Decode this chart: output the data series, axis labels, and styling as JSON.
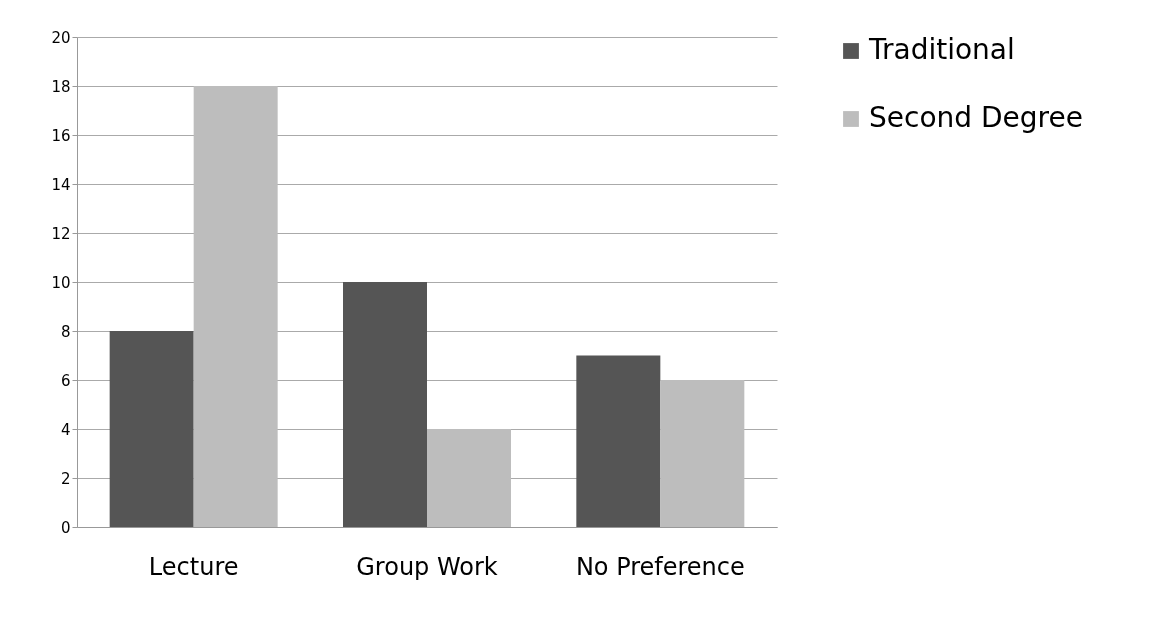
{
  "chart_data": {
    "type": "bar",
    "categories": [
      "Lecture",
      "Group Work",
      "No Preference"
    ],
    "series": [
      {
        "name": "Traditional",
        "color": "#555555",
        "values": [
          8,
          10,
          7
        ]
      },
      {
        "name": "Second Degree",
        "color": "#bdbdbd",
        "values": [
          18,
          4,
          6
        ]
      }
    ],
    "ylim": [
      0,
      20
    ],
    "yticks": [
      0,
      2,
      4,
      6,
      8,
      10,
      12,
      14,
      16,
      18,
      20
    ],
    "grid": "y",
    "legend": "right"
  }
}
